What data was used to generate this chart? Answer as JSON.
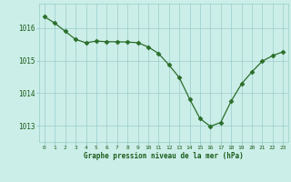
{
  "x": [
    0,
    1,
    2,
    3,
    4,
    5,
    6,
    7,
    8,
    9,
    10,
    11,
    12,
    13,
    14,
    15,
    16,
    17,
    18,
    19,
    20,
    21,
    22,
    23
  ],
  "y": [
    1016.35,
    1016.15,
    1015.9,
    1015.65,
    1015.55,
    1015.6,
    1015.58,
    1015.58,
    1015.57,
    1015.55,
    1015.42,
    1015.22,
    1014.87,
    1014.48,
    1013.82,
    1013.22,
    1012.98,
    1013.1,
    1013.75,
    1014.28,
    1014.65,
    1014.98,
    1015.15,
    1015.27
  ],
  "line_color": "#2a6e2a",
  "marker": "D",
  "marker_size": 2.5,
  "bg_color": "#cceee8",
  "grid_color": "#99cccc",
  "axis_label_color": "#1a5c1a",
  "tick_label_color": "#1a5c1a",
  "xlabel": "Graphe pression niveau de la mer (hPa)",
  "ylim": [
    1012.5,
    1016.75
  ],
  "xlim": [
    -0.5,
    23.5
  ],
  "yticks": [
    1013,
    1014,
    1015,
    1016
  ],
  "xticks": [
    0,
    1,
    2,
    3,
    4,
    5,
    6,
    7,
    8,
    9,
    10,
    11,
    12,
    13,
    14,
    15,
    16,
    17,
    18,
    19,
    20,
    21,
    22,
    23
  ]
}
